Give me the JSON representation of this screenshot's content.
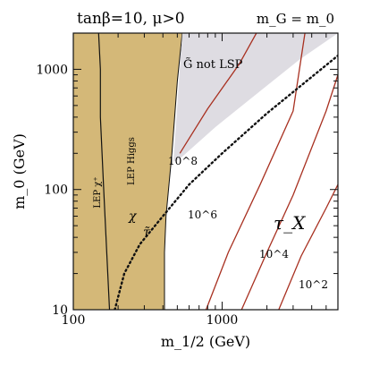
{
  "chart_data": {
    "type": "line",
    "title": "tanβ=10, μ>0",
    "corner_label": "m_G = m_0",
    "xlabel": "m_1/2 (GeV)",
    "ylabel": "m_0 (GeV)",
    "xscale": "log",
    "yscale": "log",
    "xlim": [
      100,
      6000
    ],
    "ylim": [
      10,
      2000
    ],
    "grid": false,
    "x_ticks": [
      {
        "value": 100,
        "label": "100"
      },
      {
        "value": 1000,
        "label": "1000"
      }
    ],
    "y_ticks": [
      {
        "value": 10,
        "label": "10"
      },
      {
        "value": 100,
        "label": "100"
      },
      {
        "value": 1000,
        "label": "1000"
      }
    ],
    "colors": {
      "excluded_fill": "#d4b878",
      "gravitino_fill": "#dedce2",
      "contour": "#a83020",
      "line": "#111111"
    },
    "excluded_region": {
      "label_chargino": "LEP χ⁺",
      "label_higgs": "LEP Higgs",
      "boundary": [
        {
          "x": 410,
          "y": 10
        },
        {
          "x": 410,
          "y": 30
        },
        {
          "x": 420,
          "y": 60
        },
        {
          "x": 460,
          "y": 200
        },
        {
          "x": 500,
          "y": 800
        },
        {
          "x": 540,
          "y": 2000
        }
      ]
    },
    "chargino_bound": [
      {
        "x": 175,
        "y": 10
      },
      {
        "x": 160,
        "y": 100
      },
      {
        "x": 152,
        "y": 400
      },
      {
        "x": 152,
        "y": 1000
      },
      {
        "x": 148,
        "y": 2000
      }
    ],
    "gravitino_region": {
      "label": "G̃ not LSP",
      "boundary": [
        {
          "x": 540,
          "y": 2000
        },
        {
          "x": 470,
          "y": 170
        },
        {
          "x": 520,
          "y": 180
        },
        {
          "x": 900,
          "y": 330
        },
        {
          "x": 1800,
          "y": 660
        },
        {
          "x": 3300,
          "y": 1200
        },
        {
          "x": 6000,
          "y": 2000
        }
      ]
    },
    "stau_line": {
      "label_chi": "χ",
      "label_stau": "τ̃",
      "points": [
        {
          "x": 190,
          "y": 10
        },
        {
          "x": 220,
          "y": 20
        },
        {
          "x": 280,
          "y": 35
        },
        {
          "x": 400,
          "y": 60
        },
        {
          "x": 600,
          "y": 110
        },
        {
          "x": 1000,
          "y": 200
        },
        {
          "x": 2000,
          "y": 430
        },
        {
          "x": 6000,
          "y": 1300
        }
      ]
    },
    "lifetime_label": "τ_X",
    "series": [
      {
        "name": "10^8",
        "points": [
          {
            "x": 520,
            "y": 200
          },
          {
            "x": 800,
            "y": 470
          },
          {
            "x": 1300,
            "y": 1100
          },
          {
            "x": 1700,
            "y": 2000
          }
        ]
      },
      {
        "name": "10^6",
        "points": [
          {
            "x": 780,
            "y": 10
          },
          {
            "x": 1100,
            "y": 30
          },
          {
            "x": 1800,
            "y": 110
          },
          {
            "x": 3000,
            "y": 450
          },
          {
            "x": 3600,
            "y": 2000
          }
        ]
      },
      {
        "name": "10^4",
        "points": [
          {
            "x": 1350,
            "y": 10
          },
          {
            "x": 2000,
            "y": 30
          },
          {
            "x": 3000,
            "y": 90
          },
          {
            "x": 5000,
            "y": 450
          },
          {
            "x": 6000,
            "y": 900
          }
        ]
      },
      {
        "name": "10^2",
        "points": [
          {
            "x": 2400,
            "y": 10
          },
          {
            "x": 3400,
            "y": 28
          },
          {
            "x": 5000,
            "y": 70
          },
          {
            "x": 6000,
            "y": 110
          }
        ]
      }
    ]
  }
}
